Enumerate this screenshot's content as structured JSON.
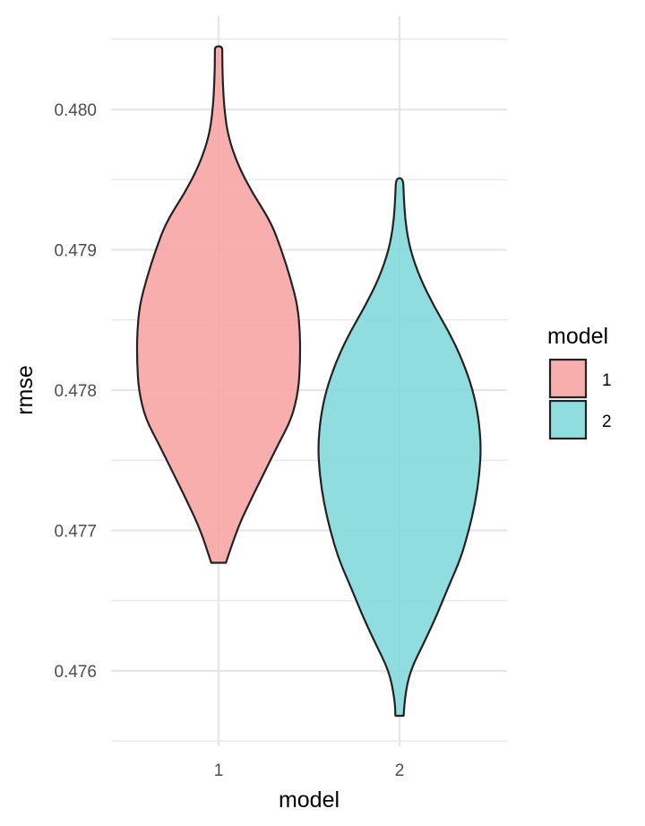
{
  "chart_data": {
    "type": "violin",
    "xlabel": "model",
    "ylabel": "rmse",
    "ylim": [
      0.4755,
      0.4805
    ],
    "y_ticks": [
      0.476,
      0.477,
      0.478,
      0.479,
      0.48
    ],
    "y_tick_labels": [
      "0.476",
      "0.477",
      "0.478",
      "0.479",
      "0.480"
    ],
    "categories": [
      "1",
      "2"
    ],
    "grid": true,
    "legend": {
      "title": "model",
      "position": "right",
      "entries": [
        "1",
        "2"
      ]
    },
    "colors": {
      "1": "#F8A3A3",
      "2": "#7FD8DB",
      "outline": "#222222",
      "grid": "#e6e6e6"
    },
    "series": [
      {
        "category": "1",
        "min": 0.47677,
        "max": 0.48045,
        "density_profile": [
          [
            0.47677,
            0.09
          ],
          [
            0.477,
            0.22
          ],
          [
            0.4772,
            0.38
          ],
          [
            0.4774,
            0.55
          ],
          [
            0.4776,
            0.72
          ],
          [
            0.4778,
            0.9
          ],
          [
            0.478,
            0.98
          ],
          [
            0.4782,
            1.0
          ],
          [
            0.4784,
            1.0
          ],
          [
            0.4786,
            0.97
          ],
          [
            0.4788,
            0.88
          ],
          [
            0.479,
            0.77
          ],
          [
            0.4792,
            0.64
          ],
          [
            0.4794,
            0.42
          ],
          [
            0.4796,
            0.24
          ],
          [
            0.4798,
            0.12
          ],
          [
            0.48,
            0.07
          ],
          [
            0.4802,
            0.05
          ],
          [
            0.4804,
            0.045
          ],
          [
            0.48045,
            0.045
          ]
        ]
      },
      {
        "category": "2",
        "min": 0.47568,
        "max": 0.47951,
        "density_profile": [
          [
            0.47568,
            0.05
          ],
          [
            0.4758,
            0.06
          ],
          [
            0.476,
            0.13
          ],
          [
            0.4762,
            0.3
          ],
          [
            0.4764,
            0.46
          ],
          [
            0.4766,
            0.6
          ],
          [
            0.4768,
            0.75
          ],
          [
            0.477,
            0.85
          ],
          [
            0.4772,
            0.93
          ],
          [
            0.4774,
            0.98
          ],
          [
            0.4776,
            1.0
          ],
          [
            0.4778,
            0.97
          ],
          [
            0.478,
            0.9
          ],
          [
            0.4782,
            0.78
          ],
          [
            0.4784,
            0.62
          ],
          [
            0.4786,
            0.42
          ],
          [
            0.4788,
            0.25
          ],
          [
            0.479,
            0.13
          ],
          [
            0.4792,
            0.07
          ],
          [
            0.4794,
            0.05
          ],
          [
            0.47951,
            0.045
          ]
        ]
      }
    ]
  }
}
